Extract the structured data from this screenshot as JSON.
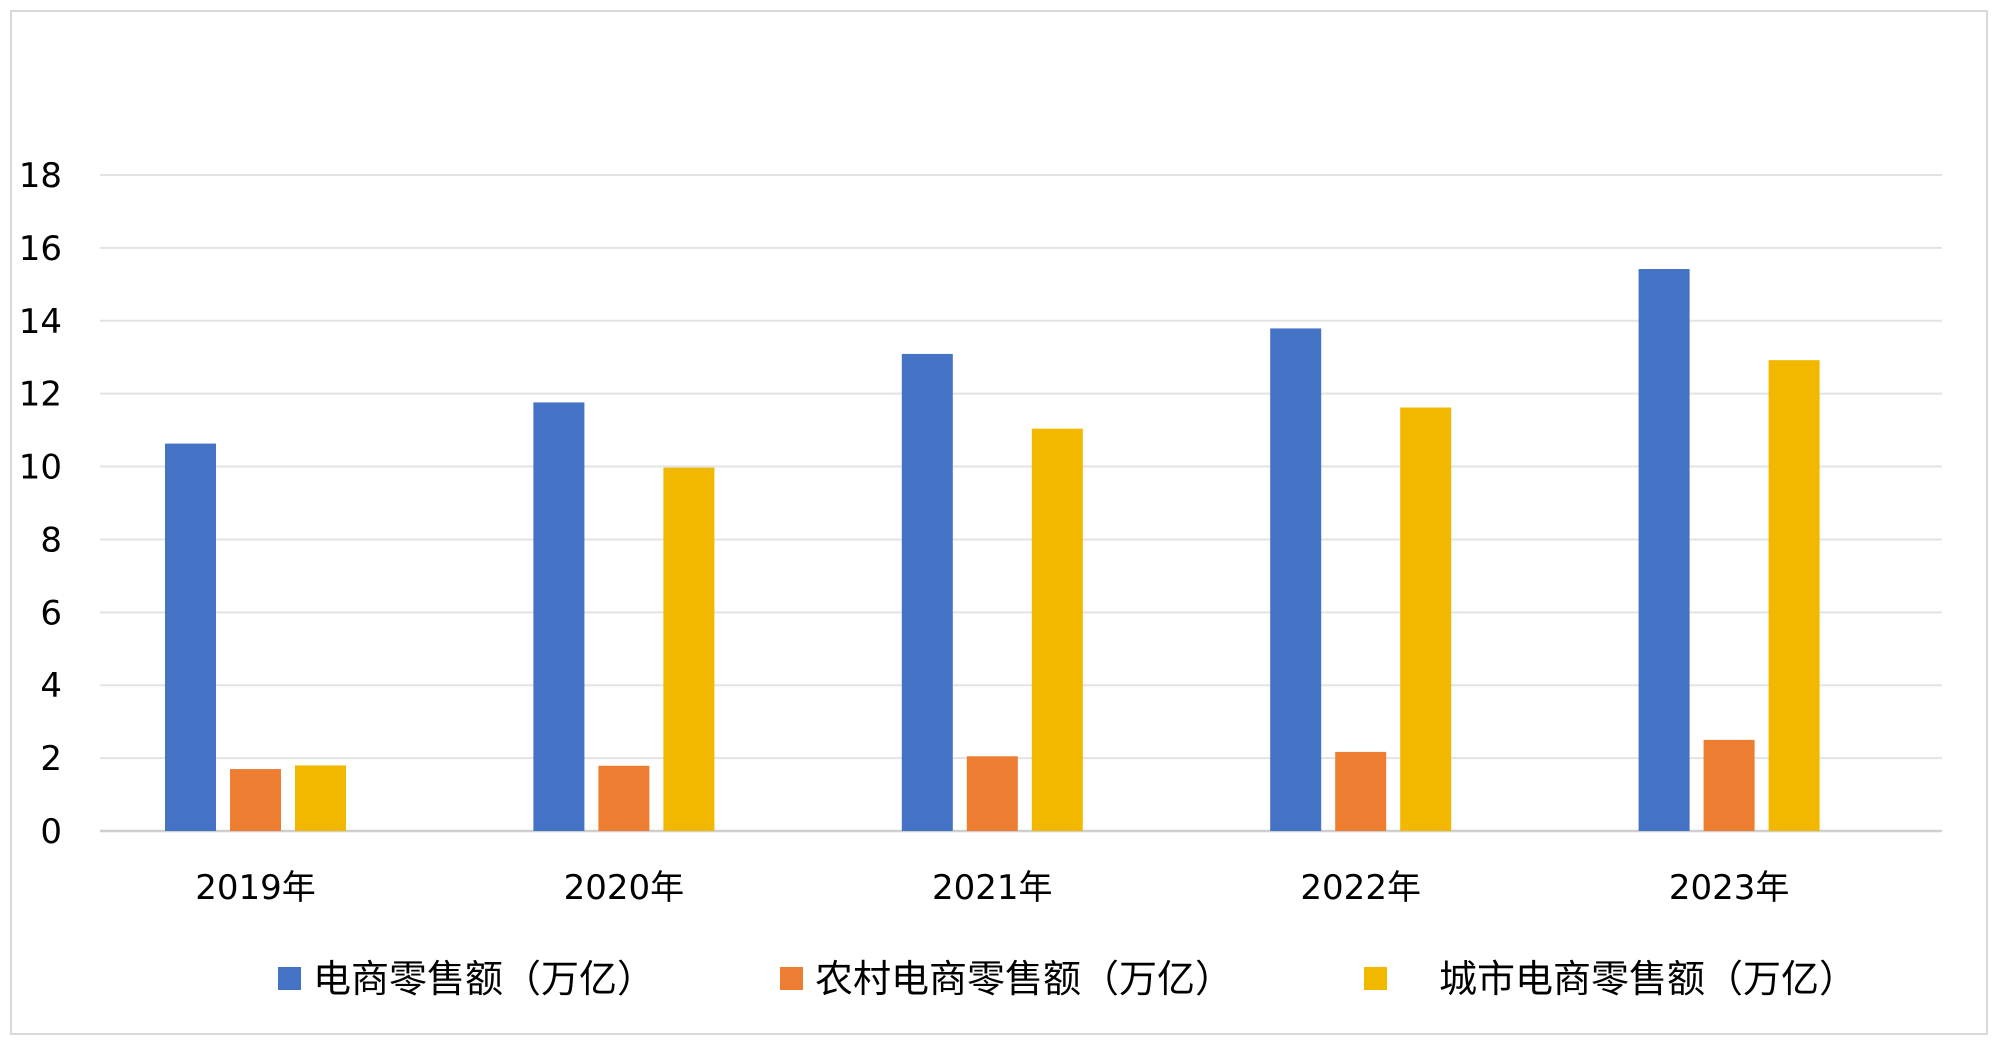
{
  "chart_data": {
    "type": "bar",
    "title": "",
    "xlabel": "",
    "ylabel": "",
    "categories": [
      "2019年",
      "2020年",
      "2021年",
      "2022年",
      "2023年"
    ],
    "ylim": [
      0,
      18
    ],
    "yticks": [
      0,
      2,
      4,
      6,
      8,
      10,
      12,
      14,
      16,
      18
    ],
    "grid": true,
    "legend_position": "bottom",
    "series": [
      {
        "name": "电商零售额（万亿）",
        "color": "#4472C4",
        "values": [
          10.63,
          11.76,
          13.09,
          13.79,
          15.42
        ]
      },
      {
        "name": "农村电商零售额（万亿）",
        "color": "#ED7D31",
        "values": [
          1.7,
          1.79,
          2.05,
          2.17,
          2.5
        ]
      },
      {
        "name": "城市电商零售额（万亿）",
        "color": "#F2B800",
        "values": [
          1.8,
          9.97,
          11.04,
          11.62,
          12.92
        ]
      }
    ]
  }
}
